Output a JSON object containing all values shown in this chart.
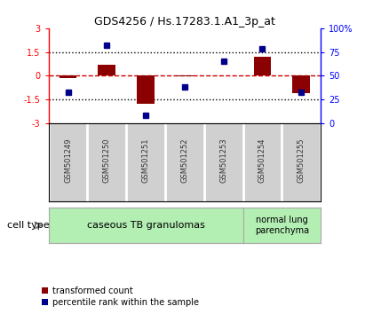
{
  "title": "GDS4256 / Hs.17283.1.A1_3p_at",
  "samples": [
    "GSM501249",
    "GSM501250",
    "GSM501251",
    "GSM501252",
    "GSM501253",
    "GSM501254",
    "GSM501255"
  ],
  "transformed_counts": [
    -0.15,
    0.7,
    -1.75,
    -0.05,
    0.05,
    1.2,
    -1.1
  ],
  "percentile_ranks": [
    33,
    82,
    8,
    38,
    65,
    78,
    33
  ],
  "ylim_left": [
    -3,
    3
  ],
  "yticks_left": [
    -3,
    -1.5,
    0,
    1.5,
    3
  ],
  "ytick_labels_left": [
    "-3",
    "-1.5",
    "0",
    "1.5",
    "3"
  ],
  "yticks_right_mapped": [
    -3,
    -1.5,
    0,
    1.5,
    3
  ],
  "ytick_labels_right": [
    "0",
    "25",
    "50",
    "75",
    "100%"
  ],
  "bar_color": "#8B0000",
  "scatter_color": "#00008B",
  "hline_color": "#CC0000",
  "dotted_color": "#000000",
  "caseous_color": "#b3eeb3",
  "normal_color": "#b3eeb3",
  "sample_box_color": "#d0d0d0",
  "legend_bar_label": "transformed count",
  "legend_scatter_label": "percentile rank within the sample",
  "cell_type_label": "cell type",
  "background_color": "#ffffff",
  "plot_bg_color": "#ffffff"
}
